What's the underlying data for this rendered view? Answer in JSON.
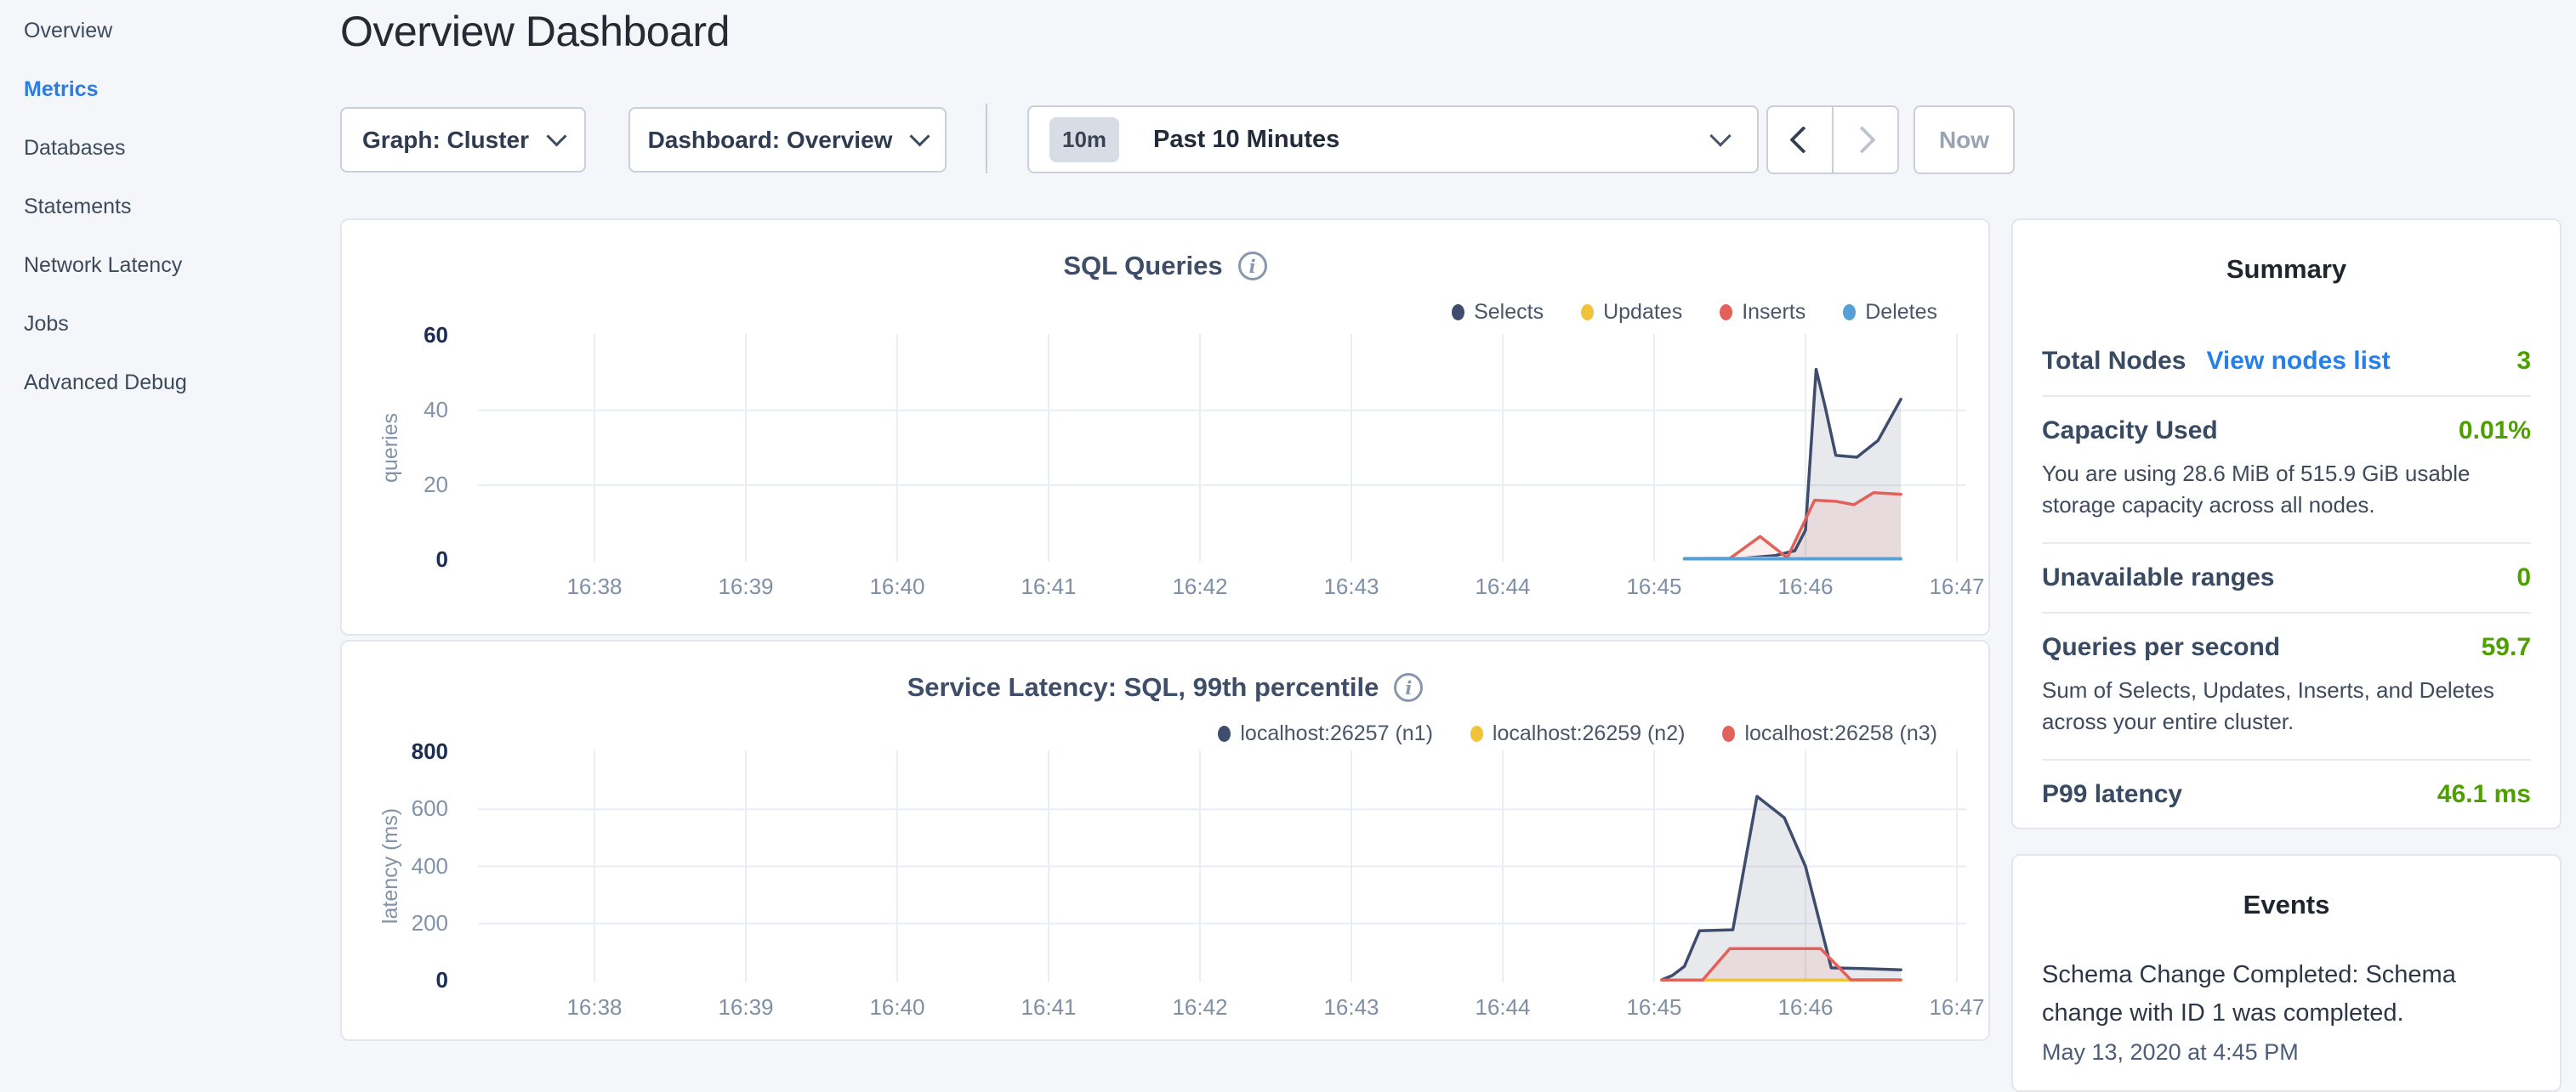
{
  "colors": {
    "background": "#f4f6fa",
    "panel_border": "#e3e6ed",
    "active_nav_blue": "#2a7de1",
    "link_blue": "#2680eb",
    "value_green": "#4da000",
    "gridline": "#e9edf4",
    "series_navy": "#3e4d6d",
    "series_yellow": "#f0c33b",
    "series_red": "#e2615b",
    "series_blue": "#57a0d6"
  },
  "sidebar": {
    "items": [
      {
        "label": "Overview",
        "active": false
      },
      {
        "label": "Metrics",
        "active": true
      },
      {
        "label": "Databases",
        "active": false
      },
      {
        "label": "Statements",
        "active": false
      },
      {
        "label": "Network Latency",
        "active": false
      },
      {
        "label": "Jobs",
        "active": false
      },
      {
        "label": "Advanced Debug",
        "active": false
      }
    ]
  },
  "header": {
    "title": "Overview Dashboard"
  },
  "toolbar": {
    "graph_label": "Graph: Cluster",
    "dashboard_label": "Dashboard: Overview",
    "time_badge": "10m",
    "time_label": "Past 10 Minutes",
    "now_label": "Now"
  },
  "charts": [
    {
      "title": "SQL Queries",
      "ylabel": "queries",
      "legend": [
        {
          "label": "Selects",
          "color": "#3e4d6d"
        },
        {
          "label": "Updates",
          "color": "#f0c33b"
        },
        {
          "label": "Inserts",
          "color": "#e2615b"
        },
        {
          "label": "Deletes",
          "color": "#57a0d6"
        }
      ],
      "chart_data": {
        "type": "area",
        "title": "SQL Queries",
        "ylabel": "queries",
        "x_unit": "clock time (minutes after 16:00)",
        "y_domain": [
          0,
          60
        ],
        "yticks": [
          0,
          20,
          40,
          60
        ],
        "xticks": [
          "16:38",
          "16:39",
          "16:40",
          "16:41",
          "16:42",
          "16:43",
          "16:44",
          "16:45",
          "16:46",
          "16:47"
        ],
        "xtick_minutes": [
          38,
          39,
          40,
          41,
          42,
          43,
          44,
          45,
          46,
          47
        ],
        "grid": true,
        "legend_position": "top-right",
        "series": [
          {
            "name": "Selects",
            "color": "#3e4d6d",
            "fill": "rgba(62,77,109,0.12)",
            "points": [
              [
                45.2,
                0.4
              ],
              [
                45.6,
                0.5
              ],
              [
                45.8,
                1.2
              ],
              [
                45.93,
                2.5
              ],
              [
                46.0,
                8
              ],
              [
                46.07,
                51
              ],
              [
                46.13,
                41
              ],
              [
                46.2,
                28
              ],
              [
                46.34,
                27.5
              ],
              [
                46.48,
                32
              ],
              [
                46.63,
                43
              ]
            ]
          },
          {
            "name": "Updates",
            "color": "#f0c33b",
            "fill": null,
            "points": [
              [
                45.2,
                0.5
              ],
              [
                46.63,
                0.5
              ]
            ]
          },
          {
            "name": "Inserts",
            "color": "#e2615b",
            "fill": "rgba(226,97,91,0.10)",
            "points": [
              [
                45.2,
                0.3
              ],
              [
                45.5,
                0.4
              ],
              [
                45.7,
                6.3
              ],
              [
                45.88,
                0.6
              ],
              [
                46.06,
                16
              ],
              [
                46.2,
                15.7
              ],
              [
                46.32,
                14.8
              ],
              [
                46.45,
                18
              ],
              [
                46.63,
                17.6
              ]
            ]
          },
          {
            "name": "Deletes",
            "color": "#57a0d6",
            "fill": null,
            "points": [
              [
                45.2,
                0.3
              ],
              [
                46.63,
                0.3
              ]
            ]
          }
        ]
      }
    },
    {
      "title": "Service Latency: SQL, 99th percentile",
      "ylabel": "latency (ms)",
      "legend": [
        {
          "label": "localhost:26257 (n1)",
          "color": "#3e4d6d"
        },
        {
          "label": "localhost:26259 (n2)",
          "color": "#f0c33b"
        },
        {
          "label": "localhost:26258 (n3)",
          "color": "#e2615b"
        }
      ],
      "chart_data": {
        "type": "area",
        "title": "Service Latency: SQL, 99th percentile",
        "ylabel": "latency (ms)",
        "x_unit": "clock time (minutes after 16:00)",
        "y_domain": [
          0,
          800
        ],
        "yticks": [
          0,
          200,
          400,
          600,
          800
        ],
        "xticks": [
          "16:38",
          "16:39",
          "16:40",
          "16:41",
          "16:42",
          "16:43",
          "16:44",
          "16:45",
          "16:46",
          "16:47"
        ],
        "xtick_minutes": [
          38,
          39,
          40,
          41,
          42,
          43,
          44,
          45,
          46,
          47
        ],
        "grid": true,
        "legend_position": "top-right",
        "series": [
          {
            "name": "localhost:26257 (n1)",
            "color": "#3e4d6d",
            "fill": "rgba(62,77,109,0.12)",
            "points": [
              [
                45.05,
                3
              ],
              [
                45.12,
                18
              ],
              [
                45.2,
                50
              ],
              [
                45.3,
                175
              ],
              [
                45.52,
                178
              ],
              [
                45.68,
                645
              ],
              [
                45.86,
                570
              ],
              [
                46.0,
                400
              ],
              [
                46.17,
                45
              ],
              [
                46.4,
                42
              ],
              [
                46.63,
                38
              ]
            ]
          },
          {
            "name": "localhost:26259 (n2)",
            "color": "#f0c33b",
            "fill": null,
            "points": [
              [
                45.05,
                2
              ],
              [
                46.63,
                2
              ]
            ]
          },
          {
            "name": "localhost:26258 (n3)",
            "color": "#e2615b",
            "fill": "rgba(226,97,91,0.10)",
            "points": [
              [
                45.05,
                2
              ],
              [
                45.32,
                2
              ],
              [
                45.5,
                112
              ],
              [
                46.1,
                112
              ],
              [
                46.3,
                3
              ],
              [
                46.63,
                3
              ]
            ]
          }
        ]
      }
    }
  ],
  "summary": {
    "title": "Summary",
    "rows": [
      {
        "label": "Total Nodes",
        "link": "View nodes list",
        "value": "3"
      },
      {
        "label": "Capacity Used",
        "value": "0.01%",
        "desc": "You are using 28.6 MiB of 515.9 GiB usable storage capacity across all nodes."
      },
      {
        "label": "Unavailable ranges",
        "value": "0"
      },
      {
        "label": "Queries per second",
        "value": "59.7",
        "desc": "Sum of Selects, Updates, Inserts, and Deletes across your entire cluster."
      },
      {
        "label": "P99 latency",
        "value": "46.1 ms"
      }
    ]
  },
  "events": {
    "title": "Events",
    "items": [
      {
        "text": "Schema Change Completed: Schema change with ID 1 was completed.",
        "timestamp": "May 13, 2020 at 4:45 PM"
      }
    ]
  }
}
